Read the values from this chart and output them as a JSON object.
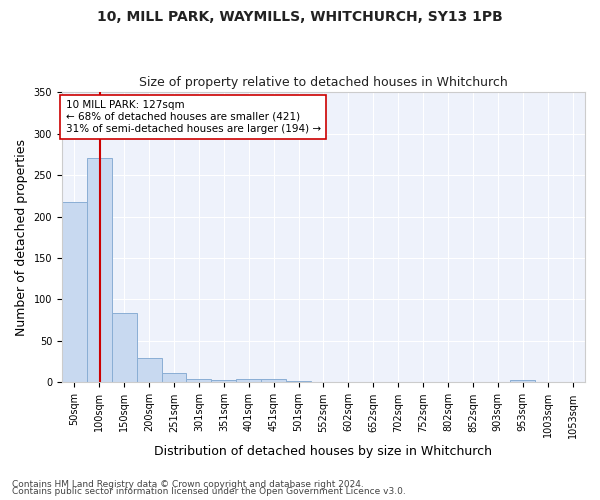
{
  "title1": "10, MILL PARK, WAYMILLS, WHITCHURCH, SY13 1PB",
  "title2": "Size of property relative to detached houses in Whitchurch",
  "xlabel": "Distribution of detached houses by size in Whitchurch",
  "ylabel": "Number of detached properties",
  "bar_labels": [
    "50sqm",
    "100sqm",
    "150sqm",
    "200sqm",
    "251sqm",
    "301sqm",
    "351sqm",
    "401sqm",
    "451sqm",
    "501sqm",
    "552sqm",
    "602sqm",
    "652sqm",
    "702sqm",
    "752sqm",
    "802sqm",
    "852sqm",
    "903sqm",
    "953sqm",
    "1003sqm",
    "1053sqm"
  ],
  "bar_values": [
    218,
    271,
    84,
    29,
    12,
    4,
    3,
    4,
    4,
    2,
    0,
    0,
    0,
    0,
    0,
    0,
    0,
    0,
    3,
    0,
    0
  ],
  "bar_color": "#c8d9f0",
  "bar_edge_color": "#8aaed4",
  "vline_color": "#cc0000",
  "annotation_text": "10 MILL PARK: 127sqm\n← 68% of detached houses are smaller (421)\n31% of semi-detached houses are larger (194) →",
  "annotation_box_color": "#ffffff",
  "annotation_box_edge": "#cc0000",
  "ylim": [
    0,
    350
  ],
  "yticks": [
    0,
    50,
    100,
    150,
    200,
    250,
    300,
    350
  ],
  "footer1": "Contains HM Land Registry data © Crown copyright and database right 2024.",
  "footer2": "Contains public sector information licensed under the Open Government Licence v3.0.",
  "bg_color": "#eef2fb",
  "grid_color": "#ffffff",
  "title1_fontsize": 10,
  "title2_fontsize": 9,
  "xlabel_fontsize": 9,
  "ylabel_fontsize": 9,
  "tick_fontsize": 7,
  "footer_fontsize": 6.5
}
